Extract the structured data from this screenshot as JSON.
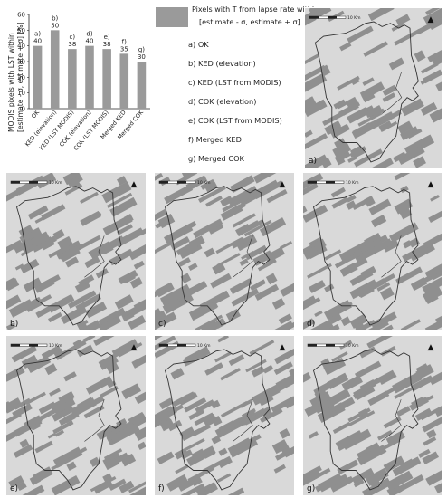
{
  "chart_data": {
    "type": "bar",
    "ylabel": "MODIS pixels with LST within [estimate - σ, estimate + σ] [%]",
    "categories": [
      "OK",
      "KED (elevation)",
      "KED (LST MODIS)",
      "COK (elevation)",
      "COK (LST MODIS)",
      "Merged KED",
      "Merged COK"
    ],
    "letters": [
      "a)",
      "b)",
      "c)",
      "d)",
      "e)",
      "f)",
      "g)"
    ],
    "values": [
      40,
      50,
      38,
      40,
      38,
      35,
      30
    ],
    "value_labels": [
      "40",
      "50",
      "38",
      "40",
      "38",
      "35",
      "30"
    ],
    "ylim": [
      0,
      60
    ],
    "ticks": [
      "0",
      "10",
      "20",
      "30",
      "40",
      "50",
      "60"
    ],
    "grid": false,
    "bar_color": "#9a9a9a"
  },
  "legend": {
    "title_line1": "Pixels with T from lapse rate within",
    "title_line2": "[estimate - σ, estimate + σ]",
    "swatch_color": "#9a9a9a",
    "items": [
      "a) OK",
      "b) KED (elevation)",
      "c) KED (LST from MODIS)",
      "d) COK (elevation)",
      "e) COK (LST from MODIS)",
      "f) Merged KED",
      "g) Merged COK"
    ]
  },
  "maps": {
    "scale_text": "10 Km",
    "north_symbol": "▲",
    "panel_labels": [
      "a)",
      "b)",
      "c)",
      "d)",
      "e)",
      "f)",
      "g)"
    ],
    "colors": {
      "light": "#d9d9d9",
      "dark": "#8f8f8f",
      "boundary": "#333333"
    }
  }
}
